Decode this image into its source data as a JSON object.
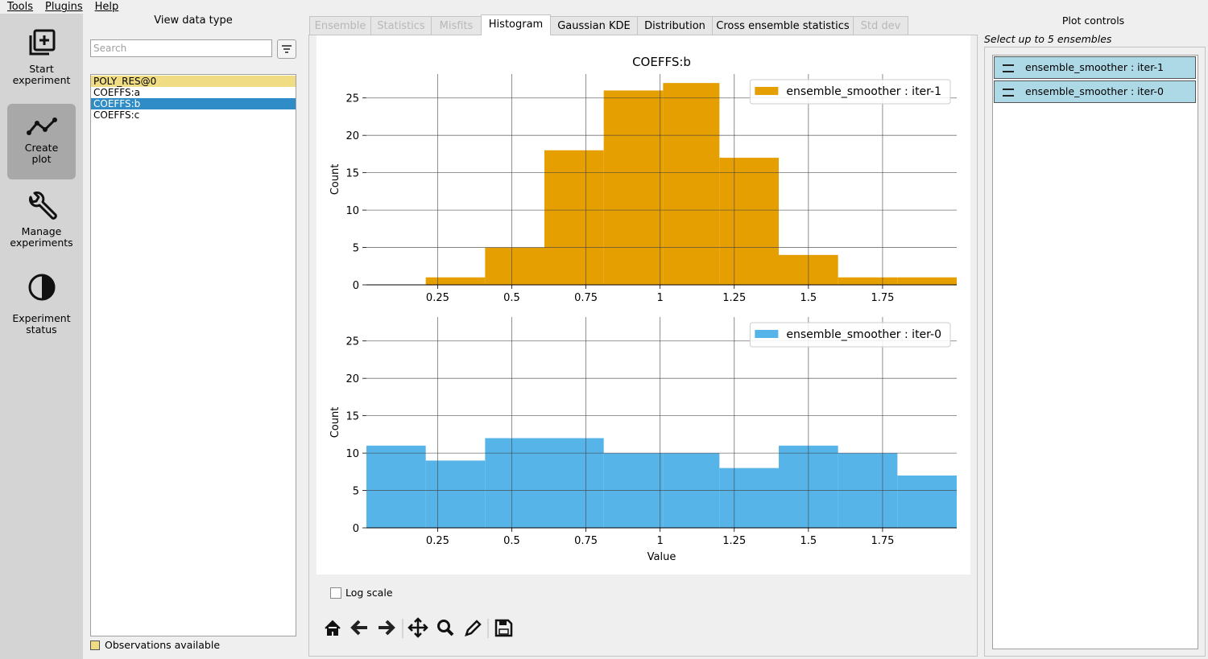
{
  "menu": [
    "Tools",
    "Plugins",
    "Help"
  ],
  "sidebar": {
    "buttons": [
      "Start experiment",
      "Create plot",
      "Manage experiments",
      "Experiment status"
    ],
    "active": 1
  },
  "data_types": {
    "title": "View data type",
    "search_placeholder": "Search",
    "items": [
      {
        "label": "POLY_RES@0",
        "has_observations": true
      },
      {
        "label": "COEFFS:a",
        "has_observations": false
      },
      {
        "label": "COEFFS:b",
        "has_observations": false
      },
      {
        "label": "COEFFS:c",
        "has_observations": false
      }
    ],
    "selected": 2,
    "legend": "Observations available"
  },
  "tabs": {
    "items": [
      {
        "label": "Ensemble",
        "enabled": false
      },
      {
        "label": "Statistics",
        "enabled": false
      },
      {
        "label": "Misfits",
        "enabled": false
      },
      {
        "label": "Histogram",
        "enabled": true
      },
      {
        "label": "Gaussian KDE",
        "enabled": true
      },
      {
        "label": "Distribution",
        "enabled": true
      },
      {
        "label": "Cross ensemble statistics",
        "enabled": true
      },
      {
        "label": "Std dev",
        "enabled": false
      }
    ],
    "active": 3
  },
  "chart_data": [
    {
      "type": "histogram",
      "title": "COEFFS:b",
      "y_label": "Count",
      "bins": [
        0.01,
        0.21,
        0.41,
        0.61,
        0.81,
        1.01,
        1.2,
        1.4,
        1.6,
        1.8,
        2.0
      ],
      "series": [
        {
          "name": "ensemble_smoother : iter-1",
          "color": "#e69f00",
          "values": [
            0,
            1,
            5,
            18,
            26,
            27,
            17,
            4,
            1,
            1
          ]
        }
      ],
      "xlim": [
        0.01,
        2.0
      ],
      "ylim": [
        0,
        28.2
      ],
      "xticks": [
        0.25,
        0.5,
        0.75,
        1,
        1.25,
        1.5,
        1.75
      ],
      "yticks": [
        0,
        5,
        10,
        15,
        20,
        25
      ],
      "grid": true,
      "legend": "upper right"
    },
    {
      "type": "histogram",
      "x_label": "Value",
      "y_label": "Count",
      "bins": [
        0.01,
        0.21,
        0.41,
        0.61,
        0.81,
        1.01,
        1.2,
        1.4,
        1.6,
        1.8,
        2.0
      ],
      "series": [
        {
          "name": "ensemble_smoother : iter-0",
          "color": "#56b4e9",
          "values": [
            11,
            9,
            12,
            12,
            10,
            10,
            8,
            11,
            10,
            7
          ]
        }
      ],
      "xlim": [
        0.01,
        2.0
      ],
      "ylim": [
        0,
        28.2
      ],
      "xticks": [
        0.25,
        0.5,
        0.75,
        1,
        1.25,
        1.5,
        1.75
      ],
      "yticks": [
        0,
        5,
        10,
        15,
        20,
        25
      ],
      "grid": true,
      "legend": "upper right"
    }
  ],
  "plot_options": {
    "log_scale_label": "Log scale",
    "log_scale": false
  },
  "plot_controls": {
    "title": "Plot controls",
    "hint": "Select up to 5 ensembles",
    "ensembles": [
      "ensemble_smoother : iter-1",
      "ensemble_smoother : iter-0"
    ]
  }
}
